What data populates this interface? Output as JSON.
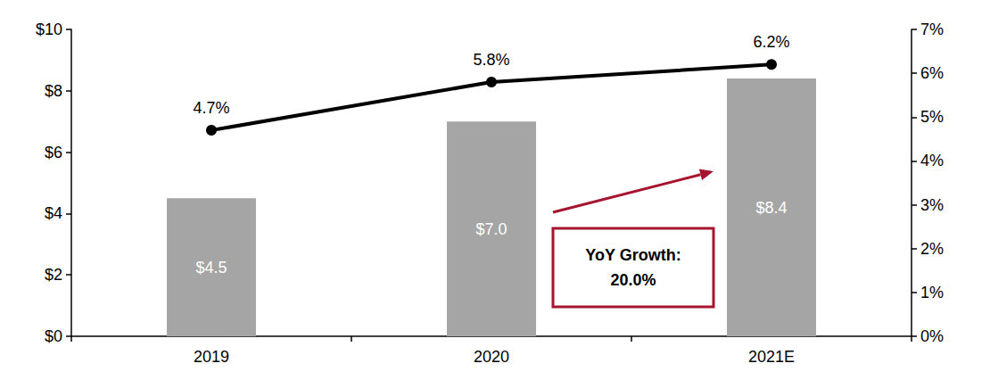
{
  "chart_data": {
    "type": "bar",
    "categories": [
      "2019",
      "2020",
      "2021E"
    ],
    "series": [
      {
        "type": "bar",
        "color": "#a5a5a5",
        "values": [
          4.5,
          7.0,
          8.4
        ],
        "value_labels": [
          "$4.5",
          "$7.0",
          "$8.4"
        ]
      },
      {
        "type": "line",
        "axis": "y2",
        "color": "#000000",
        "marker": "circle",
        "values": [
          4.7,
          5.8,
          6.2
        ],
        "value_labels": [
          "4.7%",
          "5.8%",
          "6.2%"
        ]
      }
    ],
    "ylim": [
      0,
      10
    ],
    "yticks": [
      {
        "value": 0,
        "label": "$0"
      },
      {
        "value": 2,
        "label": "$2"
      },
      {
        "value": 4,
        "label": "$4"
      },
      {
        "value": 6,
        "label": "$6"
      },
      {
        "value": 8,
        "label": "$8"
      },
      {
        "value": 10,
        "label": "$10"
      }
    ],
    "y2lim": [
      0,
      7
    ],
    "y2ticks": [
      {
        "value": 0,
        "label": "0%"
      },
      {
        "value": 1,
        "label": "1%"
      },
      {
        "value": 2,
        "label": "2%"
      },
      {
        "value": 3,
        "label": "3%"
      },
      {
        "value": 4,
        "label": "4%"
      },
      {
        "value": 5,
        "label": "5%"
      },
      {
        "value": 6,
        "label": "6%"
      },
      {
        "value": 7,
        "label": "7%"
      }
    ],
    "annotation": "YoY Growth:\n20.0%",
    "data_labels": true,
    "grid": false
  }
}
